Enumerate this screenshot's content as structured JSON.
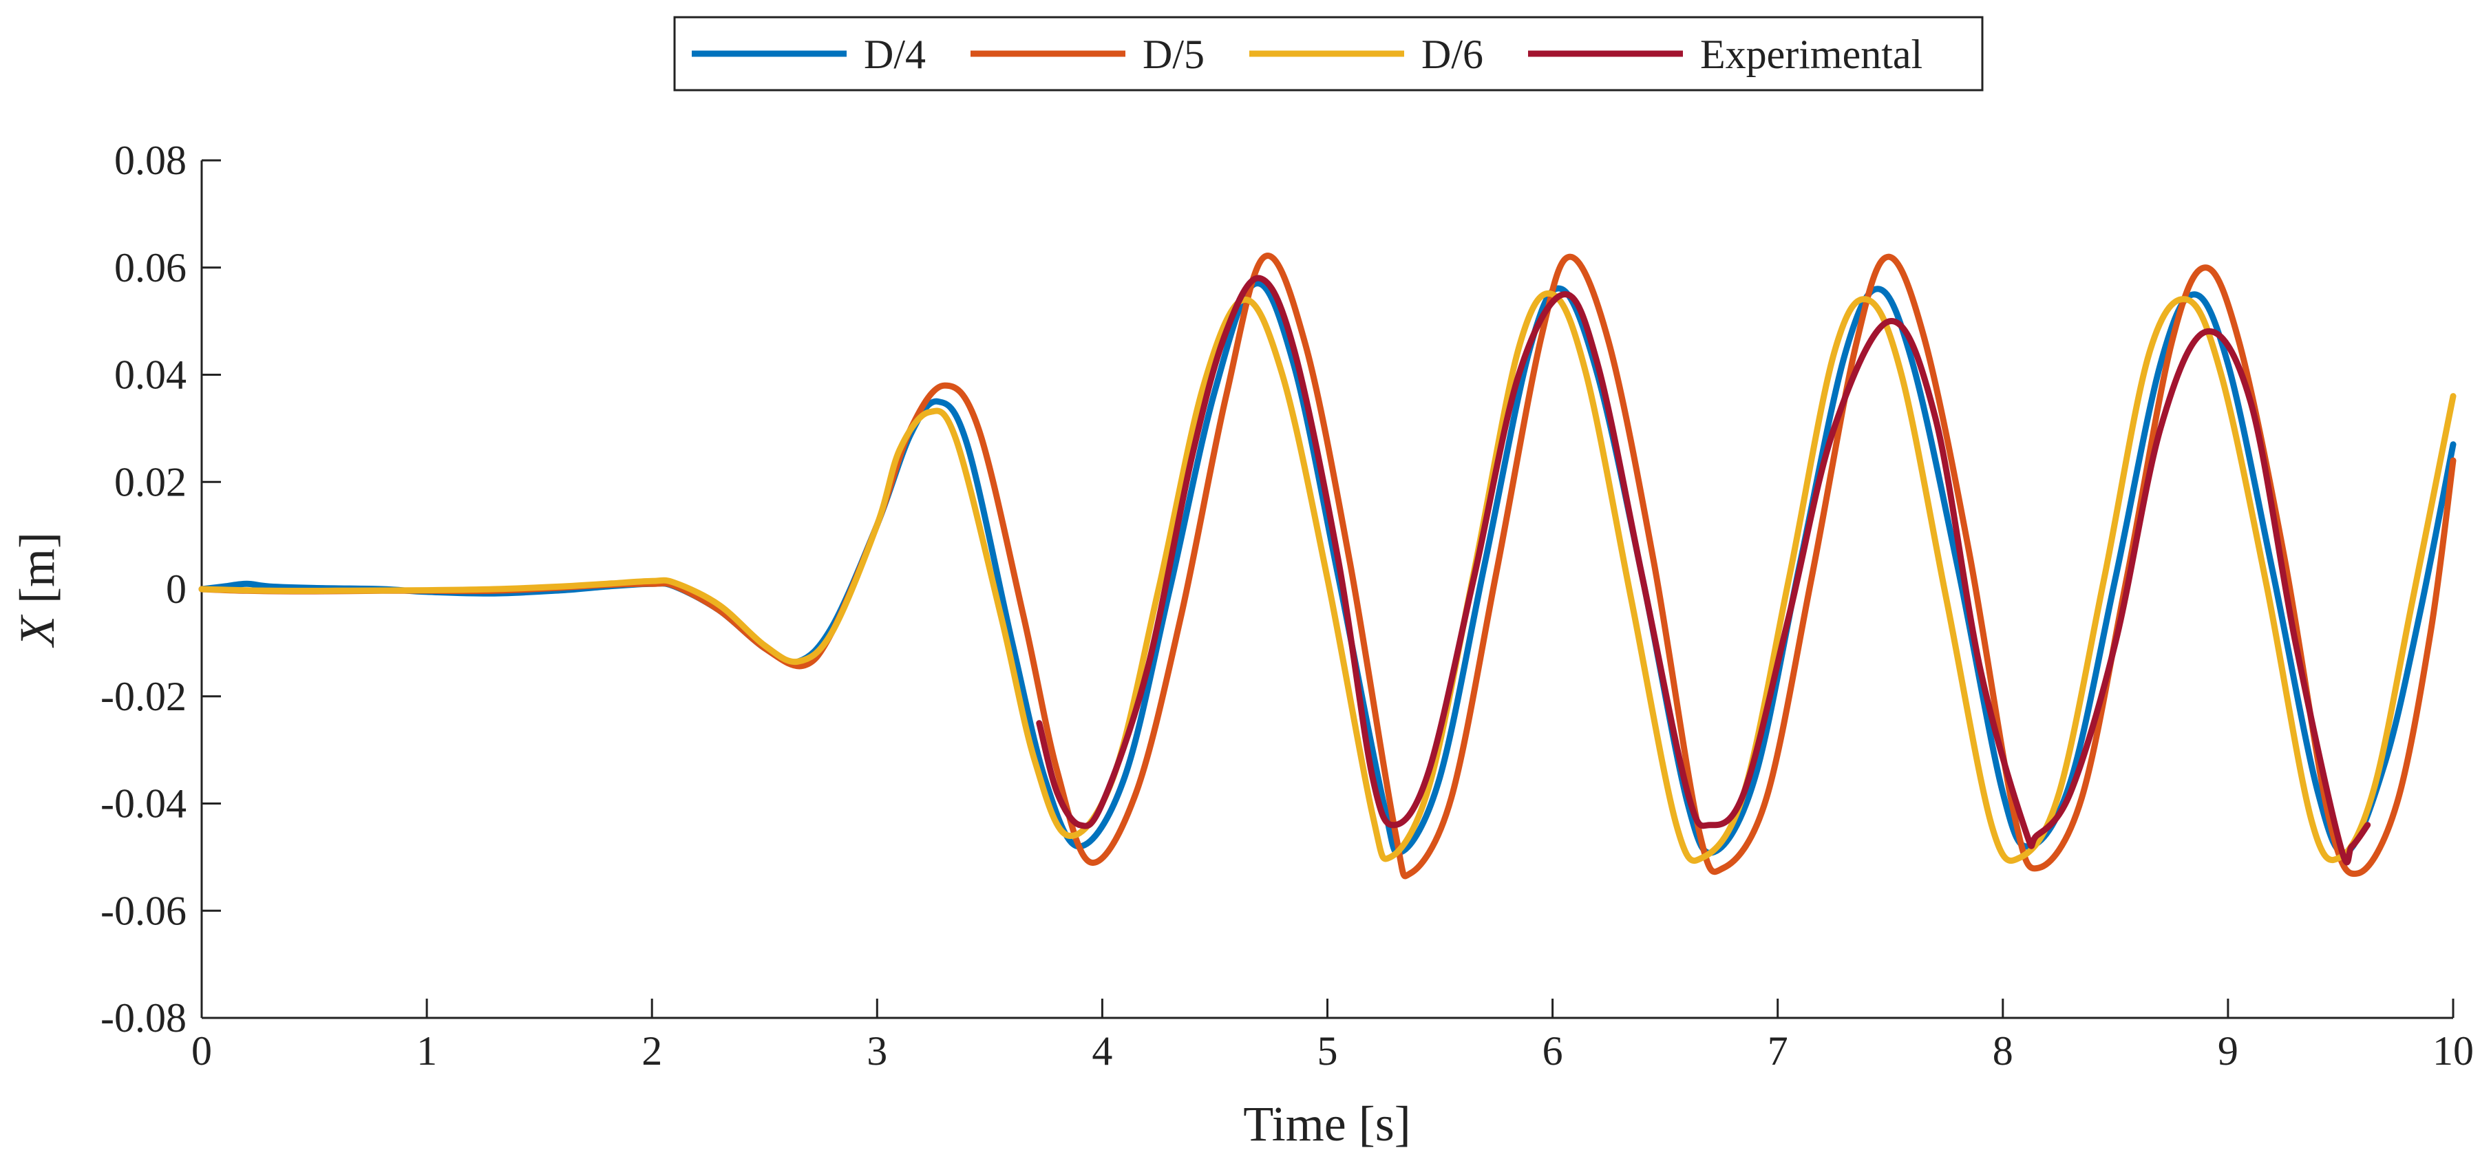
{
  "chart_data": {
    "type": "line",
    "title": "",
    "xlabel": "Time [s]",
    "ylabel_var": "X",
    "ylabel_unit": " [m]",
    "xlim": [
      0,
      10
    ],
    "ylim": [
      -0.08,
      0.08
    ],
    "xticks": [
      0,
      1,
      2,
      3,
      4,
      5,
      6,
      7,
      8,
      9,
      10
    ],
    "xtick_labels": [
      "0",
      "1",
      "2",
      "3",
      "4",
      "5",
      "6",
      "7",
      "8",
      "9",
      "10"
    ],
    "yticks": [
      -0.08,
      -0.06,
      -0.04,
      -0.02,
      0,
      0.02,
      0.04,
      0.06,
      0.08
    ],
    "ytick_labels": [
      "-0.08",
      "-0.06",
      "-0.04",
      "-0.02",
      "0",
      "0.02",
      "0.04",
      "0.06",
      "0.08"
    ],
    "grid": false,
    "legend_position": "top-center",
    "legend": [
      "D/4",
      "D/5",
      "D/6",
      "Experimental"
    ],
    "series": [
      {
        "name": "D/4",
        "color": "#0072BD",
        "x": [
          0,
          0.1,
          0.2,
          0.3,
          0.5,
          0.8,
          1.0,
          1.3,
          1.6,
          1.8,
          2.0,
          2.1,
          2.3,
          2.5,
          2.65,
          2.8,
          3.0,
          3.15,
          3.27,
          3.4,
          3.6,
          3.75,
          3.9,
          4.1,
          4.3,
          4.5,
          4.68,
          4.85,
          5.05,
          5.25,
          5.33,
          5.5,
          5.7,
          5.9,
          6.04,
          6.2,
          6.4,
          6.6,
          6.72,
          6.9,
          7.1,
          7.3,
          7.45,
          7.6,
          7.8,
          8.0,
          8.12,
          8.3,
          8.5,
          8.7,
          8.85,
          9.0,
          9.2,
          9.4,
          9.53,
          9.7,
          9.85,
          10.0
        ],
        "y": [
          0,
          0.0005,
          0.001,
          0.0005,
          0.0002,
          0,
          -0.0005,
          -0.0008,
          -0.0002,
          0.0005,
          0.001,
          0.0005,
          -0.004,
          -0.011,
          -0.0135,
          -0.007,
          0.012,
          0.029,
          0.035,
          0.027,
          -0.01,
          -0.036,
          -0.048,
          -0.035,
          0,
          0.037,
          0.057,
          0.042,
          0.002,
          -0.04,
          -0.049,
          -0.035,
          0.005,
          0.045,
          0.056,
          0.04,
          0.002,
          -0.04,
          -0.049,
          -0.035,
          0.005,
          0.044,
          0.056,
          0.042,
          0.004,
          -0.038,
          -0.048,
          -0.036,
          0.002,
          0.042,
          0.055,
          0.042,
          0.003,
          -0.038,
          -0.049,
          -0.032,
          -0.005,
          0.027
        ]
      },
      {
        "name": "D/5",
        "color": "#D95319",
        "x": [
          0,
          0.2,
          0.5,
          0.8,
          1.0,
          1.3,
          1.6,
          1.8,
          2.0,
          2.1,
          2.3,
          2.5,
          2.67,
          2.8,
          3.0,
          3.15,
          3.3,
          3.45,
          3.65,
          3.8,
          3.95,
          4.15,
          4.35,
          4.55,
          4.72,
          4.9,
          5.1,
          5.3,
          5.37,
          5.55,
          5.75,
          5.95,
          6.08,
          6.25,
          6.45,
          6.65,
          6.76,
          6.95,
          7.15,
          7.35,
          7.49,
          7.65,
          7.85,
          8.05,
          8.16,
          8.35,
          8.55,
          8.75,
          8.9,
          9.05,
          9.25,
          9.45,
          9.58,
          9.75,
          9.9,
          10.0
        ],
        "y": [
          0,
          -0.0003,
          -0.0004,
          -0.0003,
          -0.0003,
          -0.0003,
          0.0003,
          0.0008,
          0.001,
          0.0006,
          -0.004,
          -0.011,
          -0.0143,
          -0.008,
          0.012,
          0.03,
          0.038,
          0.03,
          -0.005,
          -0.034,
          -0.051,
          -0.038,
          -0.005,
          0.036,
          0.062,
          0.046,
          0.005,
          -0.045,
          -0.053,
          -0.039,
          0.003,
          0.047,
          0.062,
          0.046,
          0.005,
          -0.045,
          -0.052,
          -0.039,
          0.002,
          0.046,
          0.062,
          0.047,
          0.007,
          -0.042,
          -0.052,
          -0.039,
          0.002,
          0.046,
          0.06,
          0.046,
          0.006,
          -0.043,
          -0.053,
          -0.04,
          -0.008,
          0.024
        ]
      },
      {
        "name": "D/6",
        "color": "#EDB120",
        "x": [
          0,
          0.3,
          0.6,
          1.0,
          1.3,
          1.6,
          1.8,
          2.0,
          2.1,
          2.3,
          2.5,
          2.65,
          2.8,
          3.0,
          3.1,
          3.23,
          3.35,
          3.55,
          3.7,
          3.85,
          4.05,
          4.25,
          4.45,
          4.63,
          4.8,
          5.0,
          5.2,
          5.28,
          5.45,
          5.65,
          5.85,
          6.0,
          6.15,
          6.35,
          6.55,
          6.67,
          6.85,
          7.05,
          7.25,
          7.4,
          7.55,
          7.75,
          7.95,
          8.08,
          8.25,
          8.45,
          8.65,
          8.82,
          8.97,
          9.17,
          9.37,
          9.5,
          9.65,
          9.82,
          10.0
        ],
        "y": [
          0,
          -0.0003,
          -0.0003,
          -0.0002,
          0,
          0.0005,
          0.001,
          0.0015,
          0.0012,
          -0.003,
          -0.0105,
          -0.0135,
          -0.008,
          0.012,
          0.026,
          0.033,
          0.028,
          -0.005,
          -0.032,
          -0.046,
          -0.035,
          0,
          0.038,
          0.054,
          0.04,
          0.002,
          -0.042,
          -0.05,
          -0.037,
          0.003,
          0.045,
          0.055,
          0.04,
          -0.002,
          -0.044,
          -0.05,
          -0.038,
          0.002,
          0.044,
          0.054,
          0.04,
          -0.002,
          -0.044,
          -0.05,
          -0.038,
          0.002,
          0.044,
          0.054,
          0.04,
          0.001,
          -0.043,
          -0.05,
          -0.037,
          -0.002,
          0.036
        ]
      },
      {
        "name": "Experimental",
        "color": "#A2142F",
        "x": [
          3.72,
          3.8,
          3.9,
          4.0,
          4.2,
          4.4,
          4.55,
          4.7,
          4.85,
          5.05,
          5.2,
          5.3,
          5.45,
          5.65,
          5.85,
          6.05,
          6.2,
          6.4,
          6.6,
          6.7,
          6.85,
          7.05,
          7.25,
          7.5,
          7.7,
          7.9,
          8.1,
          8.15,
          8.3,
          8.5,
          8.7,
          8.9,
          9.1,
          9.3,
          9.5,
          9.55,
          9.62
        ],
        "y": [
          -0.025,
          -0.038,
          -0.044,
          -0.04,
          -0.015,
          0.025,
          0.048,
          0.058,
          0.045,
          0.005,
          -0.035,
          -0.044,
          -0.034,
          0.002,
          0.04,
          0.055,
          0.042,
          0.002,
          -0.038,
          -0.044,
          -0.038,
          -0.005,
          0.03,
          0.05,
          0.032,
          -0.015,
          -0.045,
          -0.046,
          -0.038,
          -0.01,
          0.03,
          0.048,
          0.035,
          -0.01,
          -0.048,
          -0.048,
          -0.044
        ]
      }
    ]
  }
}
